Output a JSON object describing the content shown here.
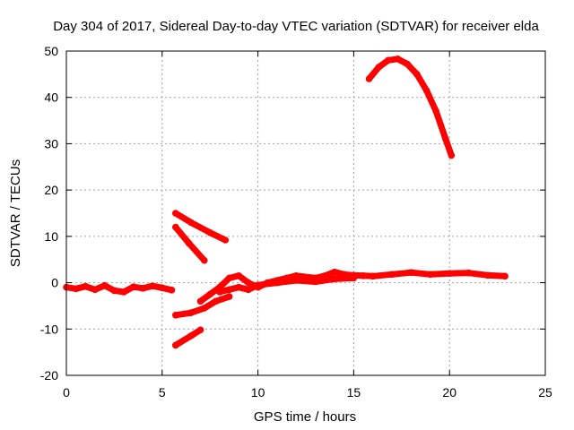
{
  "chart_data": {
    "type": "line",
    "title": "Day 304 of 2017, Sidereal Day-to-day VTEC variation (SDTVAR) for receiver elda",
    "xlabel": "GPS time / hours",
    "ylabel": "SDTVAR / TECUs",
    "xlim": [
      0,
      25
    ],
    "ylim": [
      -20,
      50
    ],
    "xticks": [
      0,
      5,
      10,
      15,
      20,
      25
    ],
    "yticks": [
      -20,
      -10,
      0,
      10,
      20,
      30,
      40,
      50
    ],
    "grid": true,
    "series_color": "#ff0000",
    "series": [
      {
        "name": "track-1",
        "points": [
          [
            0,
            -1
          ],
          [
            0.5,
            -1.3
          ],
          [
            1,
            -0.8
          ],
          [
            1.5,
            -1.5
          ],
          [
            2,
            -0.6
          ],
          [
            2.5,
            -1.7
          ],
          [
            3,
            -2.0
          ],
          [
            3.5,
            -0.9
          ],
          [
            4,
            -1.2
          ],
          [
            4.5,
            -0.7
          ],
          [
            5,
            -1.1
          ],
          [
            5.5,
            -1.6
          ]
        ]
      },
      {
        "name": "track-2",
        "points": [
          [
            5.7,
            15
          ],
          [
            6.5,
            13
          ],
          [
            7.5,
            10.8
          ],
          [
            8.3,
            9.2
          ]
        ]
      },
      {
        "name": "track-3",
        "points": [
          [
            5.7,
            12
          ],
          [
            6.4,
            8.5
          ],
          [
            7.2,
            4.8
          ]
        ]
      },
      {
        "name": "track-4",
        "points": [
          [
            5.7,
            -7
          ],
          [
            6.5,
            -6.5
          ],
          [
            7.2,
            -5.5
          ],
          [
            7.8,
            -4
          ],
          [
            8.5,
            -3
          ]
        ]
      },
      {
        "name": "track-5",
        "points": [
          [
            5.7,
            -13.5
          ],
          [
            6.5,
            -11.5
          ],
          [
            7.0,
            -10.2
          ]
        ]
      },
      {
        "name": "track-6",
        "points": [
          [
            7.0,
            -4
          ],
          [
            7.5,
            -2.5
          ],
          [
            8.0,
            -1
          ],
          [
            8.5,
            1
          ],
          [
            9.0,
            1.5
          ],
          [
            9.5,
            0
          ],
          [
            10,
            -1
          ],
          [
            10.5,
            0
          ],
          [
            11,
            0.5
          ],
          [
            11.5,
            1
          ],
          [
            12,
            1.5
          ],
          [
            13,
            1
          ],
          [
            13.5,
            1.5
          ],
          [
            14,
            2.3
          ],
          [
            14.5,
            1.8
          ],
          [
            15,
            1.6
          ],
          [
            15.5,
            1.5
          ],
          [
            16,
            1.4
          ],
          [
            17,
            1.8
          ],
          [
            18,
            2.2
          ],
          [
            19,
            1.8
          ],
          [
            20,
            2.0
          ],
          [
            21,
            2.1
          ],
          [
            22,
            1.6
          ],
          [
            22.9,
            1.4
          ]
        ]
      },
      {
        "name": "track-7",
        "points": [
          [
            8.0,
            -2
          ],
          [
            8.5,
            -1.5
          ],
          [
            9,
            -1
          ],
          [
            9.5,
            -1.5
          ],
          [
            10,
            -0.5
          ],
          [
            11,
            0
          ],
          [
            12,
            0.5
          ],
          [
            13,
            0.2
          ],
          [
            14,
            0.8
          ],
          [
            15,
            1.0
          ]
        ]
      },
      {
        "name": "track-8",
        "points": [
          [
            15.8,
            44
          ],
          [
            16.3,
            46.5
          ],
          [
            16.8,
            48
          ],
          [
            17.3,
            48.3
          ],
          [
            17.8,
            47.2
          ],
          [
            18.3,
            45
          ],
          [
            18.8,
            41.5
          ],
          [
            19.3,
            37
          ],
          [
            19.8,
            31
          ],
          [
            20.1,
            27.5
          ]
        ]
      }
    ]
  }
}
